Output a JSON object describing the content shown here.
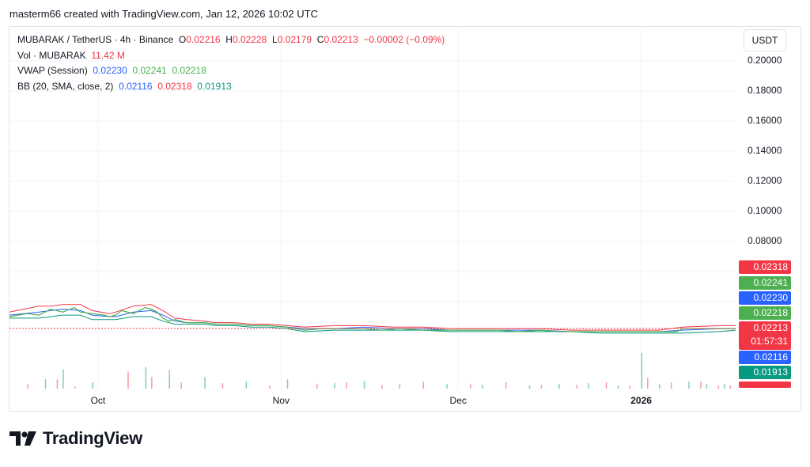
{
  "header": {
    "author_line": "masterm66 created with TradingView.com, Jan 12, 2026 10:02 UTC"
  },
  "legend": {
    "symbol": "MUBARAK / TetherUS · 4h · Binance",
    "o_label": "O",
    "o": "0.02216",
    "h_label": "H",
    "h": "0.02228",
    "l_label": "L",
    "l": "0.02179",
    "c_label": "C",
    "c": "0.02213",
    "change": "−0.00002 (−0.09%)",
    "vol_label": "Vol · MUBARAK",
    "vol": "11.42 M",
    "vwap_label": "VWAP (Session)",
    "vwap_1": "0.02230",
    "vwap_2": "0.02241",
    "vwap_3": "0.02218",
    "bb_label": "BB (20, SMA, close, 2)",
    "bb_basis": "0.02116",
    "bb_upper": "0.02318",
    "bb_lower": "0.01913"
  },
  "unit": "USDT",
  "badges": {
    "bb_upper": "0.02318",
    "vwap_upper": "0.02241",
    "vwap": "0.02230",
    "vwap_lower": "0.02218",
    "last_price": "0.02213",
    "countdown": "01:57:31",
    "bb_basis": "0.02116",
    "bb_lower": "0.01913"
  },
  "brand": "TradingView",
  "colors": {
    "up": "#089981",
    "down": "#f23645",
    "bb_upper": "#f23645",
    "bb_basis": "#2962ff",
    "bb_lower": "#089981",
    "vwap": "#4caf50"
  },
  "chart_data": {
    "type": "line",
    "title": "MUBARAK / TetherUS · 4h · Binance",
    "ylabel": "USDT",
    "ylim": [
      0.01,
      0.21
    ],
    "y_ticks": [
      "0.20000",
      "0.18000",
      "0.16000",
      "0.14000",
      "0.12000",
      "0.10000",
      "0.08000"
    ],
    "x_ticks": [
      "Oct",
      "Nov",
      "Dec",
      "2026"
    ],
    "x_tick_days": [
      15,
      46,
      76,
      107
    ],
    "x_range_days": [
      0,
      123
    ],
    "grid": true,
    "series": [
      {
        "name": "BB upper",
        "x": [
          0,
          5,
          7,
          9,
          12,
          14,
          17,
          18,
          21,
          24,
          26,
          28,
          30,
          33,
          35,
          38,
          41,
          44,
          47,
          50,
          55,
          60,
          65,
          70,
          75,
          80,
          85,
          90,
          95,
          100,
          105,
          110,
          114,
          120,
          123
        ],
        "values": [
          0.033,
          0.037,
          0.037,
          0.038,
          0.038,
          0.034,
          0.032,
          0.033,
          0.037,
          0.038,
          0.034,
          0.029,
          0.028,
          0.027,
          0.026,
          0.026,
          0.025,
          0.025,
          0.024,
          0.023,
          0.024,
          0.024,
          0.023,
          0.023,
          0.022,
          0.022,
          0.022,
          0.022,
          0.021,
          0.021,
          0.021,
          0.021,
          0.023,
          0.024,
          0.024
        ]
      },
      {
        "name": "BB basis",
        "x": [
          0,
          5,
          7,
          9,
          12,
          14,
          17,
          18,
          21,
          24,
          26,
          28,
          30,
          33,
          35,
          38,
          41,
          44,
          47,
          50,
          55,
          60,
          65,
          70,
          75,
          80,
          85,
          90,
          95,
          100,
          105,
          110,
          114,
          120,
          123
        ],
        "values": [
          0.031,
          0.033,
          0.034,
          0.035,
          0.034,
          0.031,
          0.03,
          0.03,
          0.033,
          0.034,
          0.031,
          0.027,
          0.026,
          0.026,
          0.025,
          0.025,
          0.024,
          0.024,
          0.023,
          0.022,
          0.022,
          0.023,
          0.022,
          0.022,
          0.021,
          0.021,
          0.021,
          0.021,
          0.02,
          0.02,
          0.02,
          0.02,
          0.021,
          0.022,
          0.022
        ]
      },
      {
        "name": "BB lower",
        "x": [
          0,
          5,
          7,
          9,
          12,
          14,
          17,
          18,
          21,
          24,
          26,
          28,
          30,
          33,
          35,
          38,
          41,
          44,
          47,
          50,
          55,
          60,
          65,
          70,
          75,
          80,
          85,
          90,
          95,
          100,
          105,
          110,
          114,
          120,
          123
        ],
        "values": [
          0.029,
          0.029,
          0.03,
          0.031,
          0.031,
          0.028,
          0.028,
          0.028,
          0.03,
          0.03,
          0.027,
          0.025,
          0.025,
          0.025,
          0.024,
          0.024,
          0.023,
          0.023,
          0.022,
          0.02,
          0.021,
          0.021,
          0.021,
          0.021,
          0.02,
          0.02,
          0.02,
          0.02,
          0.02,
          0.019,
          0.019,
          0.019,
          0.019,
          0.02,
          0.021
        ]
      },
      {
        "name": "Price",
        "x": [
          0,
          3,
          5,
          7,
          9,
          11,
          12,
          14,
          16,
          17,
          18,
          19,
          21,
          23,
          24,
          25,
          26,
          27,
          28,
          30,
          33,
          35,
          38,
          41,
          44,
          47,
          50,
          53,
          56,
          60,
          63,
          66,
          70,
          73,
          76,
          80,
          83,
          86,
          90,
          93,
          96,
          100,
          103,
          106,
          109,
          113,
          114,
          117,
          120,
          123
        ],
        "values": [
          0.03,
          0.032,
          0.031,
          0.035,
          0.033,
          0.036,
          0.033,
          0.032,
          0.031,
          0.03,
          0.031,
          0.034,
          0.032,
          0.036,
          0.035,
          0.033,
          0.029,
          0.027,
          0.028,
          0.026,
          0.026,
          0.025,
          0.025,
          0.024,
          0.024,
          0.023,
          0.021,
          0.022,
          0.022,
          0.022,
          0.021,
          0.022,
          0.021,
          0.021,
          0.021,
          0.021,
          0.021,
          0.02,
          0.021,
          0.02,
          0.02,
          0.02,
          0.02,
          0.02,
          0.02,
          0.02,
          0.022,
          0.022,
          0.022,
          0.022
        ]
      }
    ],
    "volume": {
      "x": [
        3,
        6,
        8,
        9,
        11,
        14,
        20,
        23,
        24,
        27,
        29,
        33,
        36,
        40,
        44,
        47,
        52,
        55,
        57,
        60,
        63,
        66,
        70,
        74,
        78,
        80,
        84,
        88,
        90,
        93,
        96,
        98,
        101,
        103,
        105,
        107,
        108,
        110,
        112,
        115,
        117,
        118,
        120,
        121,
        122
      ],
      "values": [
        6,
        12,
        12,
        25,
        3,
        8,
        22,
        28,
        15,
        24,
        8,
        15,
        7,
        9,
        4,
        12,
        6,
        7,
        8,
        10,
        5,
        6,
        9,
        6,
        6,
        5,
        8,
        4,
        5,
        6,
        5,
        7,
        8,
        4,
        4,
        46,
        14,
        6,
        8,
        9,
        9,
        6,
        4,
        6,
        4
      ]
    }
  }
}
